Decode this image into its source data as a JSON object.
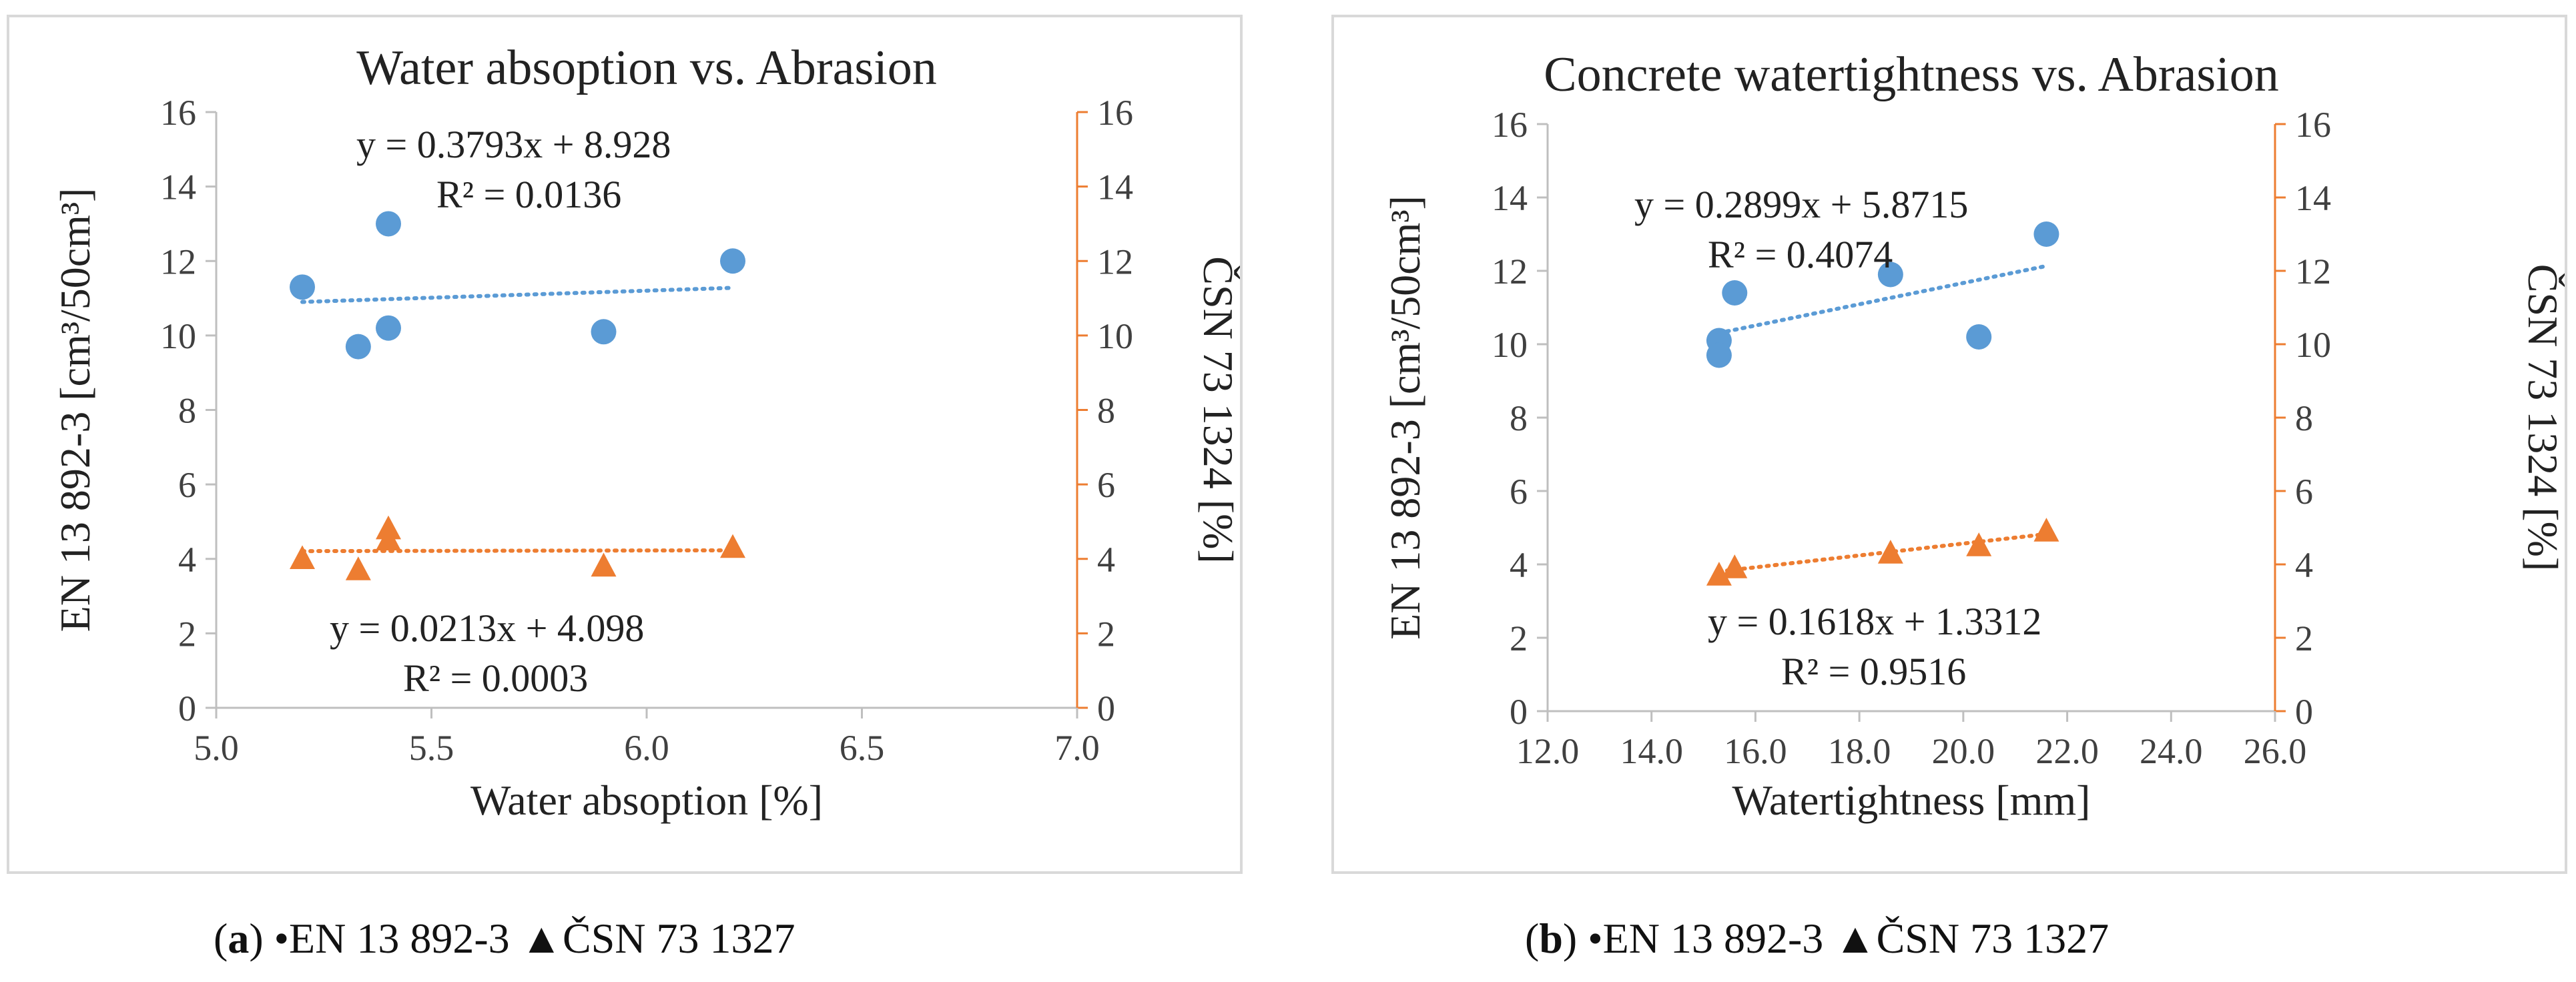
{
  "colors": {
    "blue": "#5b9bd5",
    "orange": "#ed7d31",
    "grid_frame": "#d9d9d9",
    "text": "#222222"
  },
  "chart_data": [
    {
      "type": "scatter",
      "title": "Water absoption vs. Abrasion",
      "xlabel": "Water absoption [%]",
      "ylabel_left": "EN 13 892-3 [cm³/50cm³]",
      "ylabel_right": "ČSN 73 1324 [%]",
      "xlim": [
        5.0,
        7.0
      ],
      "ylim_left": [
        0,
        16
      ],
      "ylim_right": [
        0,
        16
      ],
      "x_ticks": [
        "5.0",
        "5.5",
        "6.0",
        "6.5",
        "7.0"
      ],
      "y_ticks": [
        "0",
        "2",
        "4",
        "6",
        "8",
        "10",
        "12",
        "14",
        "16"
      ],
      "grid": false,
      "series": [
        {
          "name": "EN 13 892-3",
          "marker": "circle",
          "axis": "left",
          "color": "#5b9bd5",
          "x": [
            5.2,
            5.33,
            5.4,
            5.4,
            5.9,
            6.2
          ],
          "y": [
            11.3,
            9.7,
            10.2,
            13.0,
            10.1,
            12.0
          ],
          "trendline": {
            "slope": 0.3793,
            "intercept": 8.928,
            "equation": "y = 0.3793x + 8.928",
            "r2": "R² = 0.0136"
          }
        },
        {
          "name": "ČSN 73 1327",
          "marker": "triangle",
          "axis": "right",
          "color": "#ed7d31",
          "x": [
            5.2,
            5.33,
            5.4,
            5.4,
            5.9,
            6.2
          ],
          "y": [
            4.0,
            3.7,
            4.8,
            4.5,
            3.8,
            4.3
          ],
          "trendline": {
            "slope": 0.0213,
            "intercept": 4.098,
            "equation": "y = 0.0213x + 4.098",
            "r2": "R² = 0.0003"
          }
        }
      ],
      "caption": {
        "letter": "a",
        "text": " •EN 13 892-3 ▲ČSN 73 1327"
      }
    },
    {
      "type": "scatter",
      "title": "Concrete watertightness vs. Abrasion",
      "xlabel": "Watertightness [mm]",
      "ylabel_left": "EN 13 892-3 [cm³/50cm³]",
      "ylabel_right": "ČSN 73 1324 [%]",
      "xlim": [
        12.0,
        26.0
      ],
      "ylim_left": [
        0,
        16
      ],
      "ylim_right": [
        0,
        16
      ],
      "x_ticks": [
        "12.0",
        "14.0",
        "16.0",
        "18.0",
        "20.0",
        "22.0",
        "24.0",
        "26.0"
      ],
      "y_ticks": [
        "0",
        "2",
        "4",
        "6",
        "8",
        "10",
        "12",
        "14",
        "16"
      ],
      "grid": false,
      "series": [
        {
          "name": "EN 13 892-3",
          "marker": "circle",
          "axis": "left",
          "color": "#5b9bd5",
          "x": [
            15.3,
            15.3,
            15.6,
            18.6,
            20.3,
            21.6
          ],
          "y": [
            10.1,
            9.7,
            11.4,
            11.9,
            10.2,
            13.0
          ],
          "trendline": {
            "slope": 0.2899,
            "intercept": 5.8715,
            "equation": "y = 0.2899x + 5.8715",
            "r2": "R² = 0.4074"
          }
        },
        {
          "name": "ČSN 73 1327",
          "marker": "triangle",
          "axis": "right",
          "color": "#ed7d31",
          "x": [
            15.3,
            15.6,
            18.6,
            20.3,
            21.6
          ],
          "y": [
            3.7,
            3.9,
            4.3,
            4.5,
            4.9
          ],
          "trendline": {
            "slope": 0.1618,
            "intercept": 1.3312,
            "equation": "y = 0.1618x + 1.3312",
            "r2": "R² = 0.9516"
          }
        }
      ],
      "caption": {
        "letter": "b",
        "text": " •EN 13 892-3 ▲ČSN 73 1327"
      }
    }
  ]
}
